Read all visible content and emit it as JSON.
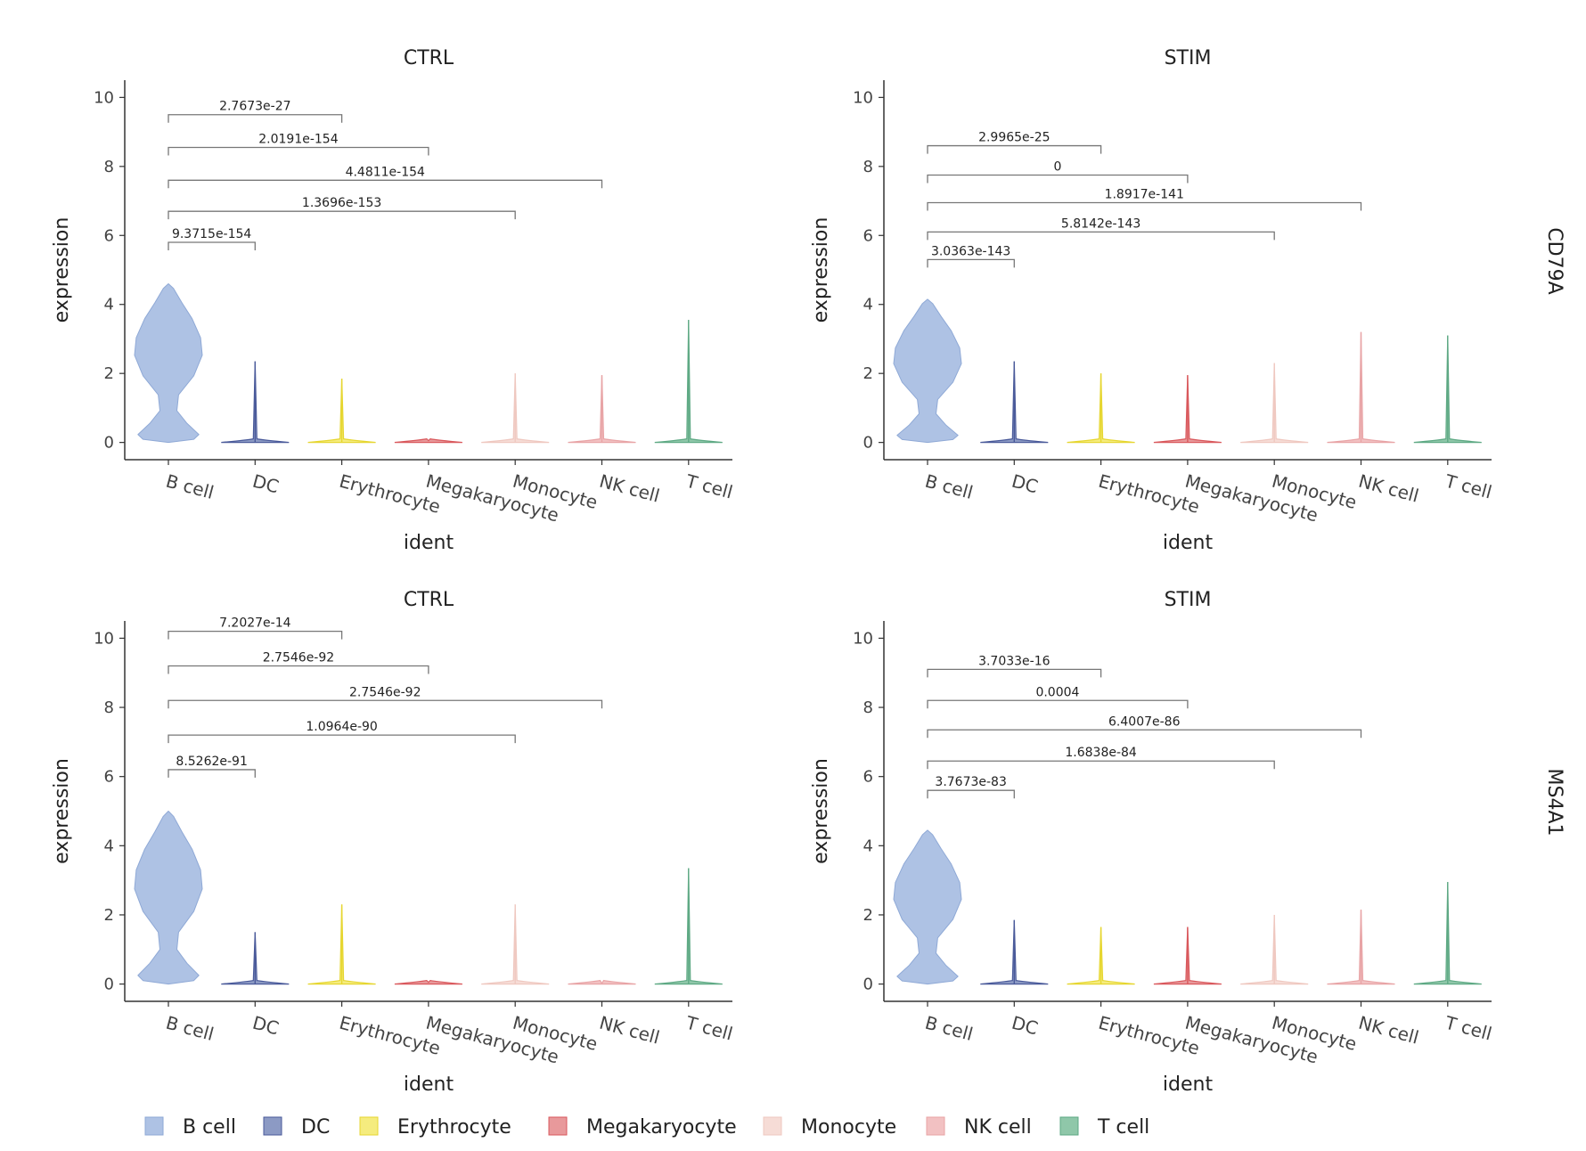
{
  "chart_data": {
    "type": "violin",
    "groups": [
      "B cell",
      "DC",
      "Erythrocyte",
      "Megakaryocyte",
      "Monocyte",
      "NK cell",
      "T cell"
    ],
    "colors": {
      "B cell": "#aec2e4",
      "DC": "#8c9ac4",
      "Erythrocyte": "#f5ec7e",
      "Megakaryocyte": "#e8999b",
      "Monocyte": "#f6dcd6",
      "NK cell": "#f2c1c2",
      "T cell": "#8fc7a9"
    },
    "edge_colors": {
      "B cell": "#8fa9d6",
      "DC": "#4a5a9a",
      "Erythrocyte": "#e6d630",
      "Megakaryocyte": "#d9585c",
      "Monocyte": "#efc8c0",
      "NK cell": "#e8a4a6",
      "T cell": "#5ea984"
    },
    "xlabel": "ident",
    "ylabel": "expression",
    "ylim": [
      -0.5,
      10.5
    ],
    "yticks": [
      0,
      2,
      4,
      6,
      8,
      10
    ],
    "panels": [
      {
        "title": "CTRL",
        "row": 0,
        "col": 0,
        "violins": [
          {
            "group": "B cell",
            "max": 4.6,
            "shape": "bimodal"
          },
          {
            "group": "DC",
            "max": 2.35,
            "shape": "spike"
          },
          {
            "group": "Erythrocyte",
            "max": 1.85,
            "shape": "spike"
          },
          {
            "group": "Megakaryocyte",
            "max": 0.05,
            "shape": "spike"
          },
          {
            "group": "Monocyte",
            "max": 2.0,
            "shape": "spike"
          },
          {
            "group": "NK cell",
            "max": 1.95,
            "shape": "spike"
          },
          {
            "group": "T cell",
            "max": 3.55,
            "shape": "spike"
          }
        ],
        "comparisons": [
          {
            "from": "B cell",
            "to": "Erythrocyte",
            "y": 9.5,
            "label": "2.7673e-27"
          },
          {
            "from": "B cell",
            "to": "Megakaryocyte",
            "y": 8.55,
            "label": "2.0191e-154"
          },
          {
            "from": "B cell",
            "to": "NK cell",
            "y": 7.6,
            "label": "4.4811e-154"
          },
          {
            "from": "B cell",
            "to": "Monocyte",
            "y": 6.7,
            "label": "1.3696e-153"
          },
          {
            "from": "B cell",
            "to": "DC",
            "y": 5.8,
            "label": "9.3715e-154"
          }
        ]
      },
      {
        "title": "STIM",
        "row": 0,
        "col": 1,
        "violins": [
          {
            "group": "B cell",
            "max": 4.15,
            "shape": "bimodal"
          },
          {
            "group": "DC",
            "max": 2.35,
            "shape": "spike"
          },
          {
            "group": "Erythrocyte",
            "max": 2.0,
            "shape": "spike"
          },
          {
            "group": "Megakaryocyte",
            "max": 1.95,
            "shape": "spike"
          },
          {
            "group": "Monocyte",
            "max": 2.3,
            "shape": "spike"
          },
          {
            "group": "NK cell",
            "max": 3.2,
            "shape": "spike"
          },
          {
            "group": "T cell",
            "max": 3.1,
            "shape": "spike"
          }
        ],
        "comparisons": [
          {
            "from": "B cell",
            "to": "Erythrocyte",
            "y": 8.6,
            "label": "2.9965e-25"
          },
          {
            "from": "B cell",
            "to": "Megakaryocyte",
            "y": 7.75,
            "label": "0"
          },
          {
            "from": "B cell",
            "to": "NK cell",
            "y": 6.95,
            "label": "1.8917e-141"
          },
          {
            "from": "B cell",
            "to": "Monocyte",
            "y": 6.1,
            "label": "5.8142e-143"
          },
          {
            "from": "B cell",
            "to": "DC",
            "y": 5.3,
            "label": "3.0363e-143"
          }
        ]
      },
      {
        "title": "CTRL",
        "row": 1,
        "col": 0,
        "violins": [
          {
            "group": "B cell",
            "max": 5.0,
            "shape": "bimodal"
          },
          {
            "group": "DC",
            "max": 1.5,
            "shape": "spike"
          },
          {
            "group": "Erythrocyte",
            "max": 2.3,
            "shape": "spike"
          },
          {
            "group": "Megakaryocyte",
            "max": 0.05,
            "shape": "spike"
          },
          {
            "group": "Monocyte",
            "max": 2.3,
            "shape": "spike"
          },
          {
            "group": "NK cell",
            "max": 0.02,
            "shape": "spike"
          },
          {
            "group": "T cell",
            "max": 3.35,
            "shape": "spike"
          }
        ],
        "comparisons": [
          {
            "from": "B cell",
            "to": "Erythrocyte",
            "y": 10.2,
            "label": "7.2027e-14"
          },
          {
            "from": "B cell",
            "to": "Megakaryocyte",
            "y": 9.2,
            "label": "2.7546e-92"
          },
          {
            "from": "B cell",
            "to": "NK cell",
            "y": 8.2,
            "label": "2.7546e-92"
          },
          {
            "from": "B cell",
            "to": "Monocyte",
            "y": 7.2,
            "label": "1.0964e-90"
          },
          {
            "from": "B cell",
            "to": "DC",
            "y": 6.2,
            "label": "8.5262e-91"
          }
        ]
      },
      {
        "title": "STIM",
        "row": 1,
        "col": 1,
        "violins": [
          {
            "group": "B cell",
            "max": 4.45,
            "shape": "bimodal"
          },
          {
            "group": "DC",
            "max": 1.85,
            "shape": "spike"
          },
          {
            "group": "Erythrocyte",
            "max": 1.65,
            "shape": "spike"
          },
          {
            "group": "Megakaryocyte",
            "max": 1.65,
            "shape": "spike"
          },
          {
            "group": "Monocyte",
            "max": 2.0,
            "shape": "spike"
          },
          {
            "group": "NK cell",
            "max": 2.15,
            "shape": "spike"
          },
          {
            "group": "T cell",
            "max": 2.95,
            "shape": "spike"
          }
        ],
        "comparisons": [
          {
            "from": "B cell",
            "to": "Erythrocyte",
            "y": 9.1,
            "label": "3.7033e-16"
          },
          {
            "from": "B cell",
            "to": "Megakaryocyte",
            "y": 8.2,
            "label": "0.0004"
          },
          {
            "from": "B cell",
            "to": "NK cell",
            "y": 7.35,
            "label": "6.4007e-86"
          },
          {
            "from": "B cell",
            "to": "Monocyte",
            "y": 6.45,
            "label": "1.6838e-84"
          },
          {
            "from": "B cell",
            "to": "DC",
            "y": 5.6,
            "label": "3.7673e-83"
          }
        ]
      }
    ],
    "row_labels": [
      "CD79A",
      "MS4A1"
    ],
    "legend": {
      "placement": "bottom",
      "entries": [
        "B cell",
        "DC",
        "Erythrocyte",
        "Megakaryocyte",
        "Monocyte",
        "NK cell",
        "T cell"
      ]
    }
  }
}
